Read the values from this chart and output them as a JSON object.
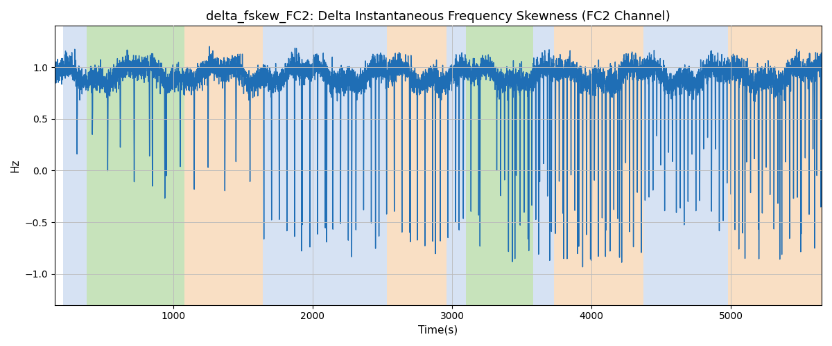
{
  "title": "delta_fskew_FC2: Delta Instantaneous Frequency Skewness (FC2 Channel)",
  "xlabel": "Time(s)",
  "ylabel": "Hz",
  "line_color": "#1f6eb5",
  "line_width": 1.0,
  "xlim": [
    150,
    5650
  ],
  "ylim": [
    -1.3,
    1.4
  ],
  "yticks": [
    -1.0,
    -0.5,
    0.0,
    0.5,
    1.0
  ],
  "xticks": [
    1000,
    2000,
    3000,
    4000,
    5000
  ],
  "grid_color": "#bbbbbb",
  "bg_color": "#ffffff",
  "seed": 42,
  "shaded_regions": [
    {
      "xmin": 210,
      "xmax": 380,
      "color": "#aec6e8",
      "alpha": 0.5
    },
    {
      "xmin": 380,
      "xmax": 1080,
      "color": "#90c978",
      "alpha": 0.5
    },
    {
      "xmin": 1080,
      "xmax": 1640,
      "color": "#f5c08a",
      "alpha": 0.5
    },
    {
      "xmin": 1640,
      "xmax": 1810,
      "color": "#aec6e8",
      "alpha": 0.5
    },
    {
      "xmin": 1810,
      "xmax": 2530,
      "color": "#aec6e8",
      "alpha": 0.5
    },
    {
      "xmin": 2530,
      "xmax": 2960,
      "color": "#f5c08a",
      "alpha": 0.5
    },
    {
      "xmin": 2960,
      "xmax": 3100,
      "color": "#aec6e8",
      "alpha": 0.5
    },
    {
      "xmin": 3100,
      "xmax": 3580,
      "color": "#90c978",
      "alpha": 0.5
    },
    {
      "xmin": 3580,
      "xmax": 3730,
      "color": "#aec6e8",
      "alpha": 0.5
    },
    {
      "xmin": 3730,
      "xmax": 4370,
      "color": "#f5c08a",
      "alpha": 0.5
    },
    {
      "xmin": 4370,
      "xmax": 4980,
      "color": "#aec6e8",
      "alpha": 0.5
    },
    {
      "xmin": 4980,
      "xmax": 5650,
      "color": "#f5c08a",
      "alpha": 0.5
    }
  ],
  "title_fontsize": 13,
  "label_fontsize": 11
}
